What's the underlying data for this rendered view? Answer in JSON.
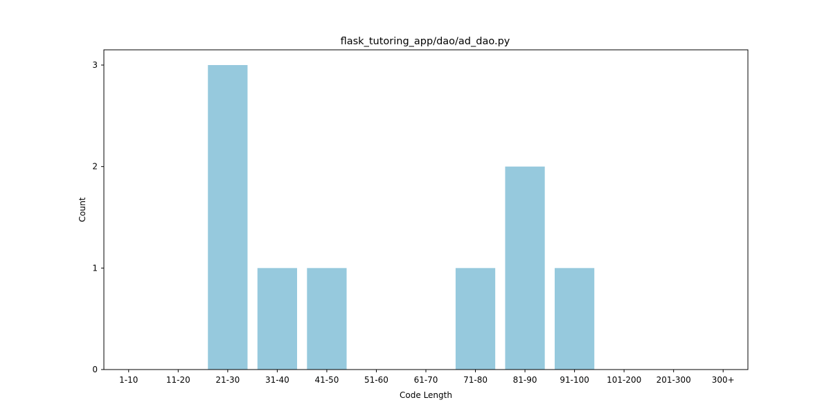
{
  "chart_data": {
    "type": "bar",
    "title": "flask_tutoring_app/dao/ad_dao.py",
    "xlabel": "Code Length",
    "ylabel": "Count",
    "categories": [
      "1-10",
      "11-20",
      "21-30",
      "31-40",
      "41-50",
      "51-60",
      "61-70",
      "71-80",
      "81-90",
      "91-100",
      "101-200",
      "201-300",
      "300+"
    ],
    "values": [
      0,
      0,
      3,
      1,
      1,
      0,
      0,
      1,
      2,
      1,
      0,
      0,
      0
    ],
    "ylim": [
      0,
      3.15
    ],
    "yticks": [
      0,
      1,
      2,
      3
    ],
    "grid": false,
    "legend": "none",
    "bar_color": "#96c9dd"
  }
}
